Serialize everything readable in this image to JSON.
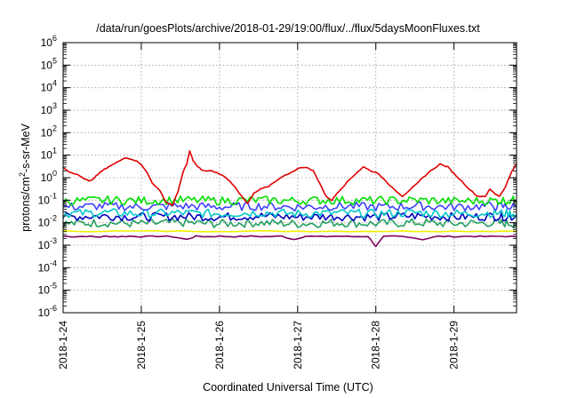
{
  "chart_data": {
    "type": "line",
    "title": "/data/run/goesPlots/archive/2018-01-29/19:00/flux/../flux/5daysMoonFluxes.txt",
    "xlabel": "Coordinated Universal Time (UTC)",
    "ylabel_base": "protons/cm",
    "ylabel_sup": "2",
    "ylabel_rest": "-s-sr-MeV",
    "y_scale": "log",
    "ylim_exp": [
      -6,
      6
    ],
    "y_ticks": [
      {
        "base": "10",
        "exp": "-6"
      },
      {
        "base": "10",
        "exp": "-5"
      },
      {
        "base": "10",
        "exp": "-4"
      },
      {
        "base": "10",
        "exp": "-3"
      },
      {
        "base": "10",
        "exp": "-2"
      },
      {
        "base": "10",
        "exp": "-1"
      },
      {
        "base": "10",
        "exp": "0"
      },
      {
        "base": "10",
        "exp": "1"
      },
      {
        "base": "10",
        "exp": "2"
      },
      {
        "base": "10",
        "exp": "3"
      },
      {
        "base": "10",
        "exp": "4"
      },
      {
        "base": "10",
        "exp": "5"
      },
      {
        "base": "10",
        "exp": "6"
      }
    ],
    "xlim_days": [
      0,
      5.8
    ],
    "x_ticks": [
      "2018-1-24",
      "2018-1-25",
      "2018-1-26",
      "2018-1-27",
      "2018-1-28",
      "2018-1-29"
    ],
    "grid": true,
    "legend": "none",
    "series": [
      {
        "color": "#e00000",
        "x": [
          0,
          0.08,
          0.16,
          0.25,
          0.33,
          0.38,
          0.42,
          0.5,
          0.58,
          0.7,
          0.8,
          0.92,
          1.0,
          1.08,
          1.14,
          1.24,
          1.32,
          1.4,
          1.46,
          1.5,
          1.54,
          1.58,
          1.62,
          1.66,
          1.72,
          1.8,
          1.9,
          2.0,
          2.1,
          2.2,
          2.28,
          2.36,
          2.44,
          2.52,
          2.62,
          2.74,
          2.88,
          3.0,
          3.1,
          3.2,
          3.28,
          3.36,
          3.44,
          3.5,
          3.58,
          3.66,
          3.74,
          3.84,
          3.94,
          4.04,
          4.14,
          4.24,
          4.34,
          4.44,
          4.52,
          4.6,
          4.7,
          4.82,
          4.92,
          5.0,
          5.1,
          5.2,
          5.3,
          5.4,
          5.46,
          5.52,
          5.58,
          5.66,
          5.74,
          5.8
        ],
        "y": [
          3,
          1.8,
          1.5,
          1.0,
          0.7,
          0.8,
          1.2,
          2.0,
          3.0,
          5.0,
          8.0,
          6.0,
          4.0,
          1.5,
          0.6,
          0.25,
          0.08,
          0.06,
          0.2,
          0.6,
          2.0,
          4.0,
          15,
          6.0,
          3.0,
          2.0,
          2.0,
          1.5,
          0.9,
          0.4,
          0.15,
          0.07,
          0.2,
          0.3,
          0.4,
          0.8,
          1.5,
          2.5,
          3.0,
          2.0,
          0.6,
          0.15,
          0.1,
          0.2,
          0.4,
          0.8,
          1.5,
          3.0,
          2.0,
          1.5,
          0.6,
          0.3,
          0.15,
          0.3,
          0.5,
          1.0,
          2.0,
          4.0,
          3.0,
          1.5,
          0.7,
          0.3,
          0.15,
          0.15,
          0.3,
          0.2,
          0.15,
          0.4,
          2.0,
          4.0
        ]
      },
      {
        "color": "#00e000",
        "x": [
          0,
          0.5,
          1.0,
          1.5,
          2.0,
          2.5,
          3.0,
          3.5,
          4.0,
          4.5,
          5.0,
          5.5,
          5.8
        ],
        "y": [
          0.09,
          0.1,
          0.095,
          0.1,
          0.095,
          0.1,
          0.095,
          0.1,
          0.095,
          0.1,
          0.09,
          0.095,
          0.1
        ]
      },
      {
        "color": "#4040ff",
        "x": [
          0,
          0.5,
          1.0,
          1.5,
          2.0,
          2.5,
          3.0,
          3.5,
          4.0,
          4.5,
          5.0,
          5.5,
          5.8
        ],
        "y": [
          0.05,
          0.055,
          0.05,
          0.055,
          0.05,
          0.055,
          0.05,
          0.055,
          0.05,
          0.055,
          0.05,
          0.055,
          0.05
        ]
      },
      {
        "color": "#00c8c8",
        "x": [
          0,
          0.5,
          1.0,
          1.5,
          2.0,
          2.5,
          3.0,
          3.5,
          4.0,
          4.5,
          5.0,
          5.5,
          5.8
        ],
        "y": [
          0.025,
          0.028,
          0.025,
          0.027,
          0.025,
          0.028,
          0.025,
          0.027,
          0.025,
          0.028,
          0.025,
          0.027,
          0.025
        ]
      },
      {
        "color": "#0000c0",
        "x": [
          0,
          0.5,
          1.0,
          1.5,
          2.0,
          2.5,
          3.0,
          3.5,
          4.0,
          4.5,
          5.0,
          5.5,
          5.8
        ],
        "y": [
          0.018,
          0.02,
          0.018,
          0.019,
          0.018,
          0.02,
          0.018,
          0.019,
          0.018,
          0.02,
          0.018,
          0.019,
          0.018
        ]
      },
      {
        "color": "#20a060",
        "x": [
          0,
          0.5,
          1.0,
          1.5,
          2.0,
          2.5,
          3.0,
          3.5,
          4.0,
          4.5,
          5.0,
          5.5,
          5.8
        ],
        "y": [
          0.009,
          0.01,
          0.009,
          0.01,
          0.009,
          0.01,
          0.009,
          0.01,
          0.009,
          0.01,
          0.009,
          0.01,
          0.009
        ]
      },
      {
        "color": "#f0f000",
        "x": [
          0,
          0.5,
          1.0,
          1.5,
          2.0,
          2.5,
          3.0,
          3.5,
          4.0,
          4.5,
          5.0,
          5.5,
          5.8
        ],
        "y": [
          0.0042,
          0.0042,
          0.0042,
          0.0042,
          0.0042,
          0.0042,
          0.0042,
          0.0042,
          0.0042,
          0.0042,
          0.0042,
          0.0042,
          0.0042
        ]
      },
      {
        "color": "#800060",
        "x": [
          0,
          0.15,
          0.3,
          0.45,
          0.55,
          0.7,
          0.85,
          1.0,
          1.2,
          1.4,
          1.58,
          1.7,
          1.85,
          2.0,
          2.2,
          2.4,
          2.6,
          2.8,
          2.95,
          3.1,
          3.3,
          3.5,
          3.7,
          3.9,
          4.0,
          4.1,
          4.25,
          4.4,
          4.6,
          4.8,
          5.0,
          5.2,
          5.4,
          5.6,
          5.8
        ],
        "y": [
          0.0025,
          0.0024,
          0.0025,
          0.0023,
          0.0025,
          0.0024,
          0.0025,
          0.0024,
          0.0025,
          0.0024,
          0.0018,
          0.0025,
          0.0024,
          0.0025,
          0.0024,
          0.0025,
          0.0024,
          0.0025,
          0.0018,
          0.0025,
          0.0024,
          0.0025,
          0.0024,
          0.0025,
          0.0009,
          0.0024,
          0.0025,
          0.0024,
          0.0018,
          0.0025,
          0.0024,
          0.0025,
          0.0024,
          0.0025,
          0.0024
        ]
      }
    ]
  }
}
